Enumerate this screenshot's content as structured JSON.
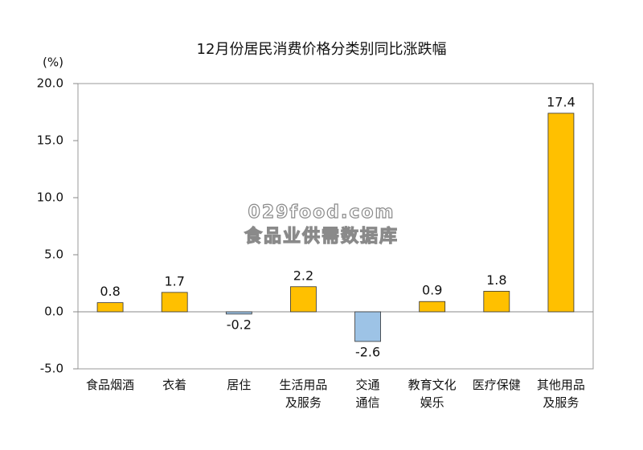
{
  "chart_data": {
    "type": "bar",
    "title": "12月份居民消费价格分类别同比涨跌幅",
    "y_label": "(%)",
    "categories": [
      "食品烟酒",
      "衣着",
      "居住",
      "生活用品\n及服务",
      "交通\n通信",
      "教育文化\n娱乐",
      "医疗保健",
      "其他用品\n及服务"
    ],
    "values": [
      0.8,
      1.7,
      -0.2,
      2.2,
      -2.6,
      0.9,
      1.8,
      17.4
    ],
    "color": "#ffc000",
    "negative_color": "#9dc3e6",
    "ylim": [
      -5,
      20
    ],
    "yticks": [
      {
        "value": -5,
        "label": "-5.0"
      },
      {
        "value": 0,
        "label": "0.0"
      },
      {
        "value": 5,
        "label": "5.0"
      },
      {
        "value": 10,
        "label": "10.0"
      },
      {
        "value": 15,
        "label": "15.0"
      },
      {
        "value": 20,
        "label": "20.0"
      }
    ],
    "watermark": [
      "029food.com",
      "食品业供需数据库"
    ]
  }
}
